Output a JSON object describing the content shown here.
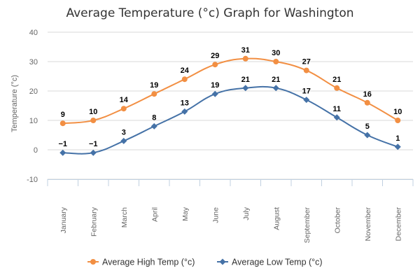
{
  "chart_data": {
    "type": "line",
    "title": "Average Temperature (°c) Graph for Washington",
    "ylabel": "Temperature (°c)",
    "xlabel": "",
    "categories": [
      "January",
      "February",
      "March",
      "April",
      "May",
      "June",
      "July",
      "August",
      "September",
      "October",
      "November",
      "December"
    ],
    "ylim": [
      -10,
      40
    ],
    "yticks": [
      -10,
      0,
      10,
      20,
      30,
      40
    ],
    "grid": true,
    "legend_position": "bottom-center",
    "series": [
      {
        "name": "Average High Temp (°c)",
        "color": "#f28f43",
        "marker": "circle",
        "values": [
          9,
          10,
          14,
          19,
          24,
          29,
          31,
          30,
          27,
          21,
          16,
          10
        ]
      },
      {
        "name": "Average Low Temp (°c)",
        "color": "#4572a7",
        "marker": "diamond",
        "values": [
          -1,
          -1,
          3,
          8,
          13,
          19,
          21,
          21,
          17,
          11,
          5,
          1
        ]
      }
    ]
  }
}
